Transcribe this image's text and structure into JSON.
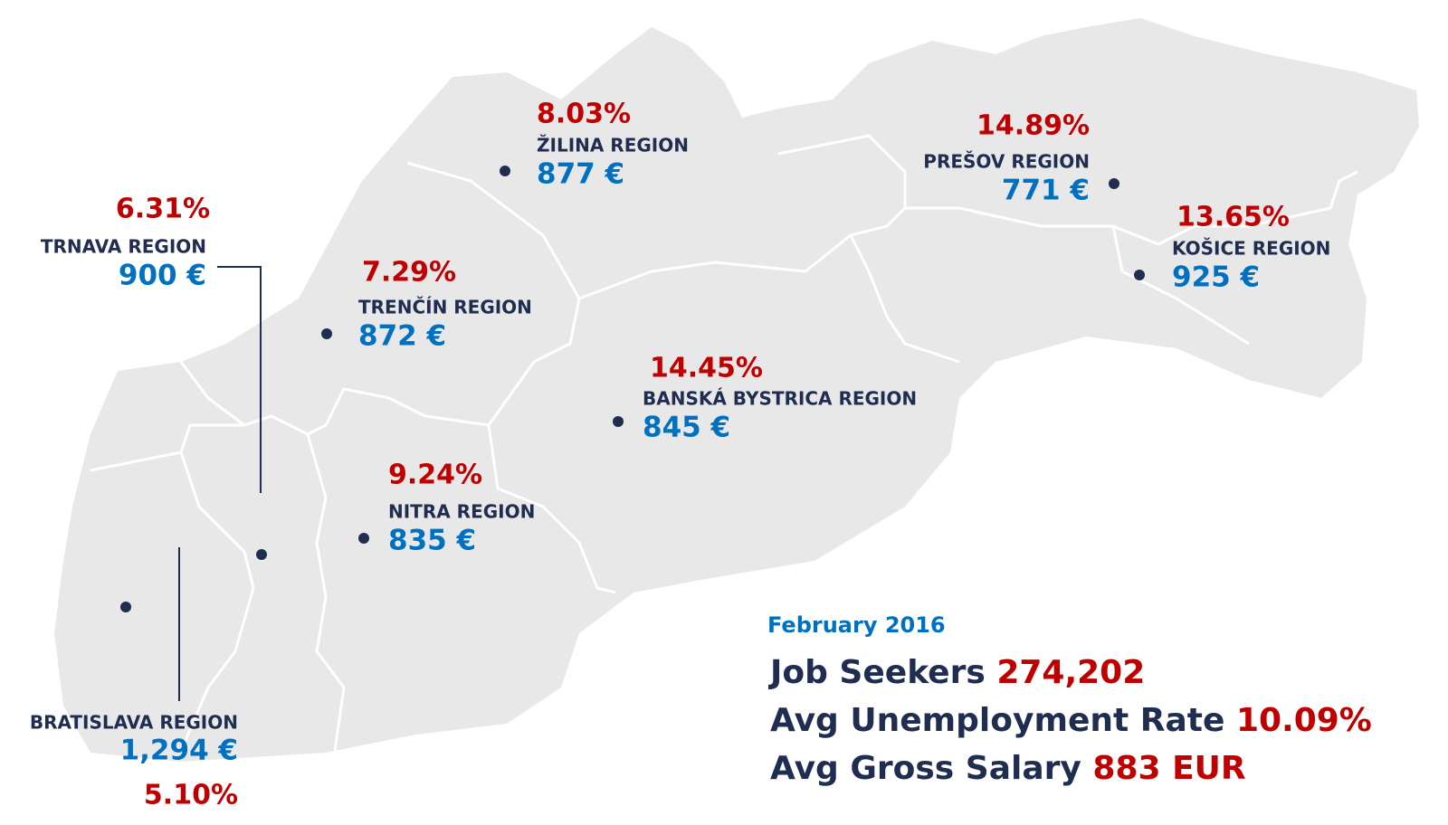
{
  "regions": [
    {
      "name": "TRNAVA REGION",
      "rate": "6.31%",
      "salary": "900 €"
    },
    {
      "name": "ŽILINA REGION",
      "rate": "8.03%",
      "salary": "877 €"
    },
    {
      "name": "TRENČÍN REGION",
      "rate": "7.29%",
      "salary": "872 €"
    },
    {
      "name": "NITRA REGION",
      "rate": "9.24%",
      "salary": "835 €"
    },
    {
      "name": "BANSKÁ BYSTRICA REGION",
      "rate": "14.45%",
      "salary": "845 €"
    },
    {
      "name": "PREŠOV REGION",
      "rate": "14.89%",
      "salary": "771 €"
    },
    {
      "name": "KOŠICE REGION",
      "rate": "13.65%",
      "salary": "925 €"
    },
    {
      "name": "BRATISLAVA REGION",
      "rate": "5.10%",
      "salary": "1,294 €"
    }
  ],
  "summary": {
    "date": "February 2016",
    "items": [
      {
        "label": "Job Seekers",
        "value": "274,202"
      },
      {
        "label": "Avg Unemployment Rate",
        "value": "10.09%"
      },
      {
        "label": "Avg Gross Salary",
        "value": "883 EUR"
      }
    ]
  }
}
